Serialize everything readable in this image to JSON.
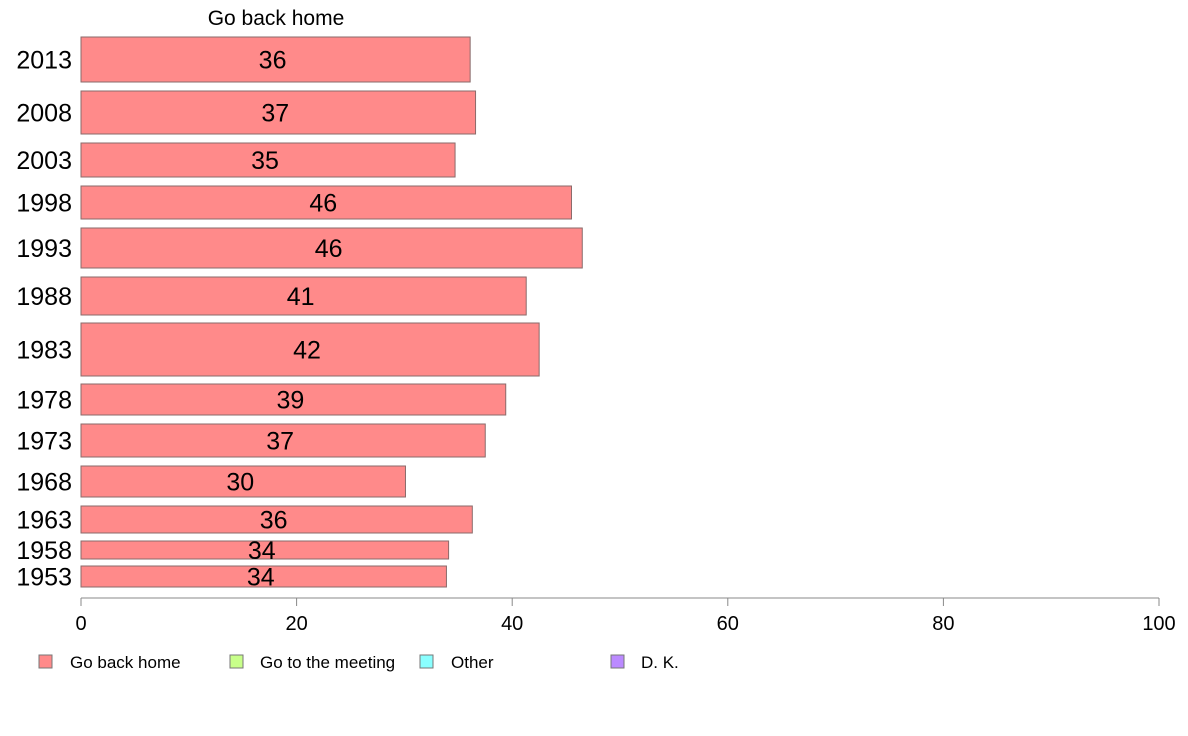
{
  "chart_data": {
    "type": "bar",
    "orientation": "horizontal",
    "stacked": true,
    "title": "",
    "series_header": "Go back home",
    "categories": [
      "2013",
      "2008",
      "2003",
      "1998",
      "1993",
      "1988",
      "1983",
      "1978",
      "1973",
      "1968",
      "1963",
      "1958",
      "1953"
    ],
    "series": [
      {
        "name": "Go back home",
        "color": "#ff8a8a",
        "values": [
          36.1,
          36.6,
          34.7,
          45.5,
          46.5,
          41.3,
          42.5,
          39.4,
          37.5,
          30.1,
          36.3,
          34.1,
          33.9
        ],
        "labels": [
          "36",
          "37",
          "35",
          "46",
          "46",
          "41",
          "42",
          "39",
          "37",
          "30",
          "36",
          "34",
          "34"
        ]
      }
    ],
    "xlim": [
      0,
      100
    ],
    "xticks": [
      "0",
      "20",
      "40",
      "60",
      "80",
      "100"
    ],
    "xtick_values": [
      0,
      20,
      40,
      60,
      80,
      100
    ],
    "grid": false,
    "legend_position": "bottom",
    "legend": [
      {
        "label": "Go back home",
        "color": "#ff8a8a"
      },
      {
        "label": "Go to the meeting",
        "color": "#c8ff8a"
      },
      {
        "label": "Other",
        "color": "#8affff"
      },
      {
        "label": "D. K.",
        "color": "#bb8aff"
      }
    ]
  }
}
